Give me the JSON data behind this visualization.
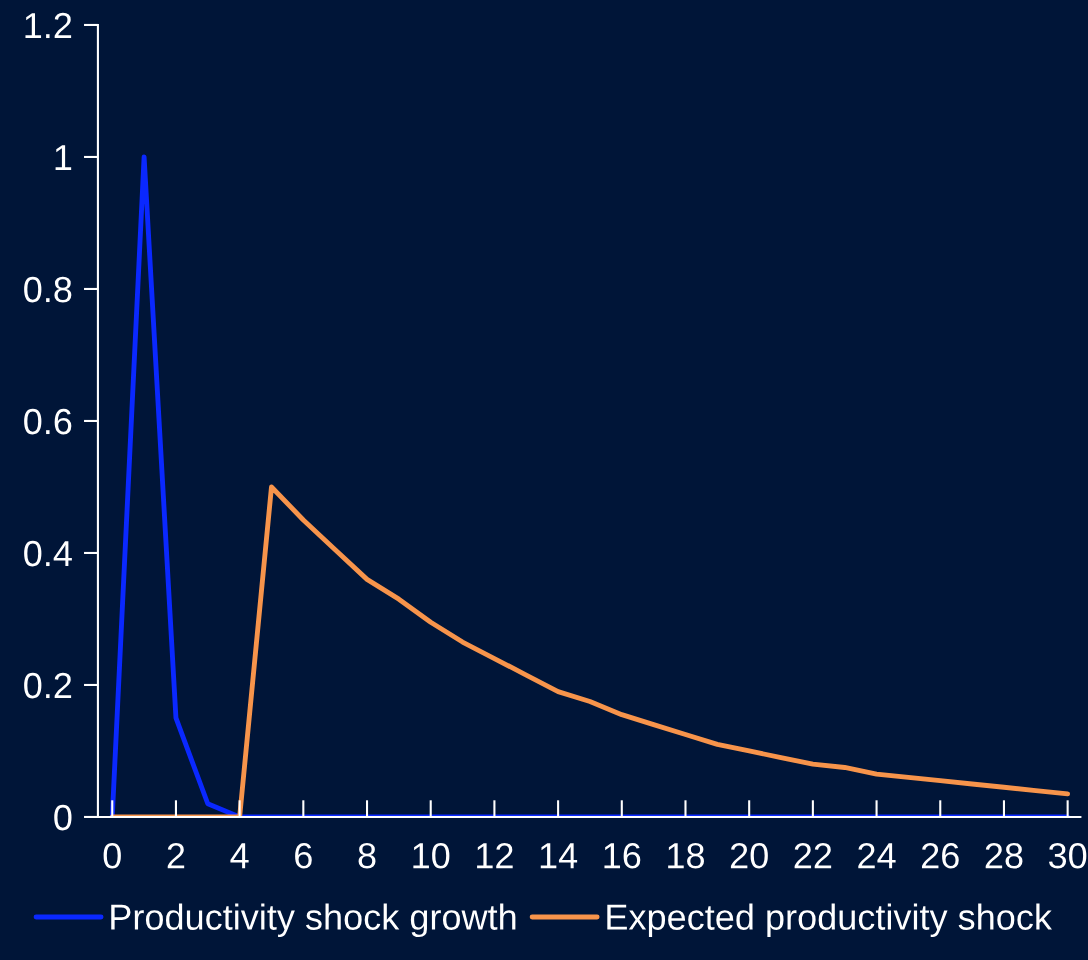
{
  "chart_data": {
    "type": "line",
    "x": [
      0,
      1,
      2,
      3,
      4,
      5,
      6,
      7,
      8,
      9,
      10,
      11,
      12,
      13,
      14,
      15,
      16,
      17,
      18,
      19,
      20,
      21,
      22,
      23,
      24,
      25,
      26,
      27,
      28,
      29,
      30
    ],
    "series": [
      {
        "name": "Productivity shock growth",
        "color": "#0a28ff",
        "values": [
          0,
          1,
          0.15,
          0.02,
          0,
          0,
          0,
          0,
          0,
          0,
          0,
          0,
          0,
          0,
          0,
          0,
          0,
          0,
          0,
          0,
          0,
          0,
          0,
          0,
          0,
          0,
          0,
          0,
          0,
          0,
          0
        ]
      },
      {
        "name": "Expected productivity shock",
        "color": "#f7944b",
        "values": [
          0,
          0,
          0,
          0,
          0,
          0.5,
          0.45,
          0.405,
          0.36,
          0.33,
          0.295,
          0.265,
          0.24,
          0.215,
          0.19,
          0.175,
          0.155,
          0.14,
          0.125,
          0.11,
          0.1,
          0.09,
          0.08,
          0.075,
          0.065,
          0.06,
          0.055,
          0.05,
          0.045,
          0.04,
          0.035
        ]
      }
    ],
    "xlim": [
      -0.45,
      30.4
    ],
    "xticks": [
      0,
      2,
      4,
      6,
      8,
      10,
      12,
      14,
      16,
      18,
      20,
      22,
      24,
      26,
      28,
      30
    ],
    "ylim": [
      0,
      1.2
    ],
    "yticks": [
      0,
      0.2,
      0.4,
      0.6,
      0.8,
      1,
      1.2
    ],
    "grid": false,
    "legend": "bottom",
    "marker": "none",
    "line_style": "solid"
  }
}
